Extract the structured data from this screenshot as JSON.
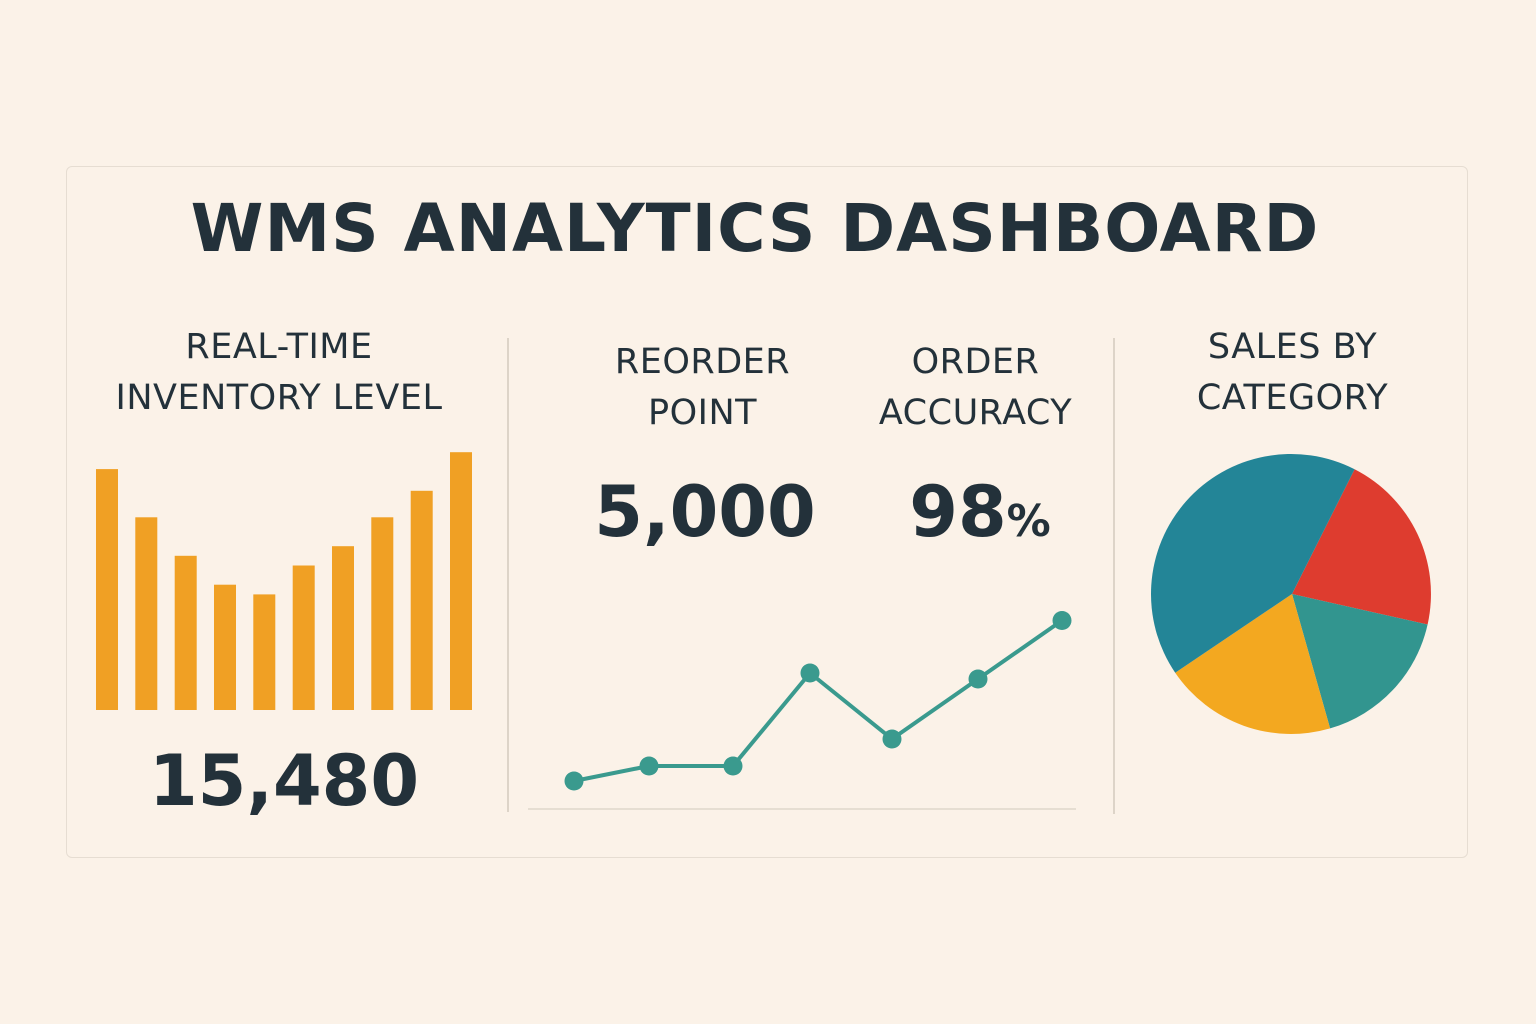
{
  "dashboard": {
    "title": "WMS ANALYTICS DASHBOARD"
  },
  "inventory": {
    "label": "REAL-TIME\nINVENTORY LEVEL",
    "value": "15,480"
  },
  "reorder": {
    "label": "REORDER\nPOINT",
    "value": "5,000"
  },
  "accuracy": {
    "label": "ORDER\nACCURACY",
    "value": "98",
    "unit": "%"
  },
  "sales": {
    "label": "SALES BY\nCATEGORY"
  },
  "colors": {
    "background": "#fbf2e8",
    "text": "#23313a",
    "bar": "#f0a024",
    "line": "#3a9a8e",
    "pie_blue": "#238597",
    "pie_red": "#de3c2f",
    "pie_teal": "#32958f",
    "pie_yellow": "#f3a820"
  },
  "chart_data": [
    {
      "type": "bar",
      "values": [
        100,
        80,
        64,
        52,
        48,
        60,
        68,
        80,
        91,
        107
      ],
      "ylim": [
        0,
        110
      ],
      "grid": false,
      "color": "#f0a024"
    },
    {
      "type": "line",
      "x": [
        1,
        2,
        3,
        4,
        5,
        6,
        7
      ],
      "values": [
        10,
        20,
        20,
        82,
        38,
        78,
        117
      ],
      "ylim": [
        0,
        130
      ],
      "grid": false,
      "color": "#3a9a8e",
      "markers": true
    },
    {
      "type": "pie",
      "values": [
        21,
        17,
        20,
        42
      ],
      "colors": [
        "#de3c2f",
        "#32958f",
        "#f3a820",
        "#238597"
      ]
    }
  ]
}
